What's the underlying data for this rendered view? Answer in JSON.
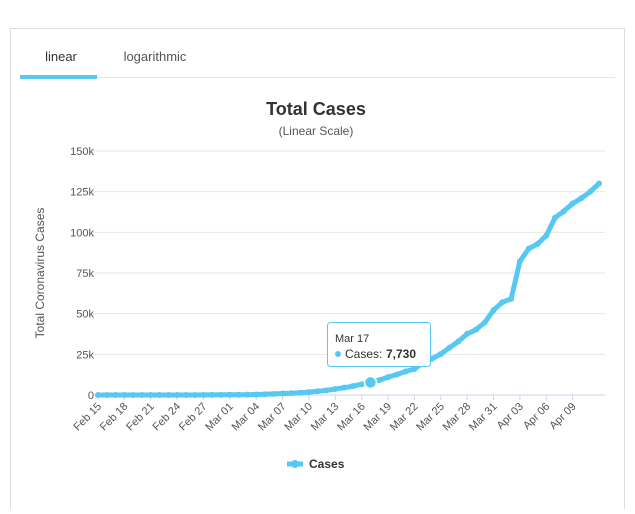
{
  "tabs": [
    "linear",
    "logarithmic"
  ],
  "chart_data": {
    "type": "line",
    "title": "Total Cases",
    "subtitle": "(Linear Scale)",
    "y_label": "Total Coronavirus Cases",
    "categories": [
      "Feb 15",
      null,
      null,
      "Feb 18",
      null,
      null,
      "Feb 21",
      null,
      null,
      "Feb 24",
      null,
      null,
      "Feb 27",
      null,
      null,
      "Mar 01",
      null,
      null,
      "Mar 04",
      null,
      null,
      "Mar 07",
      null,
      null,
      "Mar 10",
      null,
      null,
      "Mar 13",
      null,
      null,
      "Mar 16",
      null,
      null,
      "Mar 19",
      null,
      null,
      "Mar 22",
      null,
      null,
      "Mar 25",
      null,
      null,
      "Mar 28",
      null,
      null,
      "Mar 31",
      null,
      null,
      "Apr 03",
      null,
      null,
      "Apr 06",
      null,
      null,
      "Apr 09",
      null,
      null,
      null
    ],
    "series": [
      {
        "name": "Cases",
        "color": "#57c8f2",
        "values": [
          12,
          12,
          12,
          12,
          12,
          12,
          12,
          12,
          12,
          12,
          14,
          18,
          38,
          57,
          100,
          130,
          191,
          212,
          285,
          423,
          653,
          949,
          1126,
          1412,
          1784,
          2281,
          2876,
          3661,
          4499,
          5423,
          6633,
          7730,
          9134,
          10995,
          12612,
          14459,
          16018,
          19856,
          22302,
          25233,
          29155,
          32964,
          37575,
          40174,
          44550,
          52128,
          56989,
          59105,
          82165,
          89953,
          92839,
          98010,
          109069,
          112950,
          117749,
          121000,
          125000,
          130000
        ]
      }
    ],
    "ylim": [
      0,
      150000
    ],
    "yticks": [
      {
        "value": 0,
        "label": "0"
      },
      {
        "value": 25000,
        "label": "25k"
      },
      {
        "value": 50000,
        "label": "50k"
      },
      {
        "value": 75000,
        "label": "75k"
      },
      {
        "value": 100000,
        "label": "100k"
      },
      {
        "value": 125000,
        "label": "125k"
      },
      {
        "value": 150000,
        "label": "150k"
      }
    ],
    "grid": true,
    "tooltip": {
      "date": "Mar 17",
      "label": "Cases:",
      "value": "7,730",
      "index": 31
    }
  }
}
